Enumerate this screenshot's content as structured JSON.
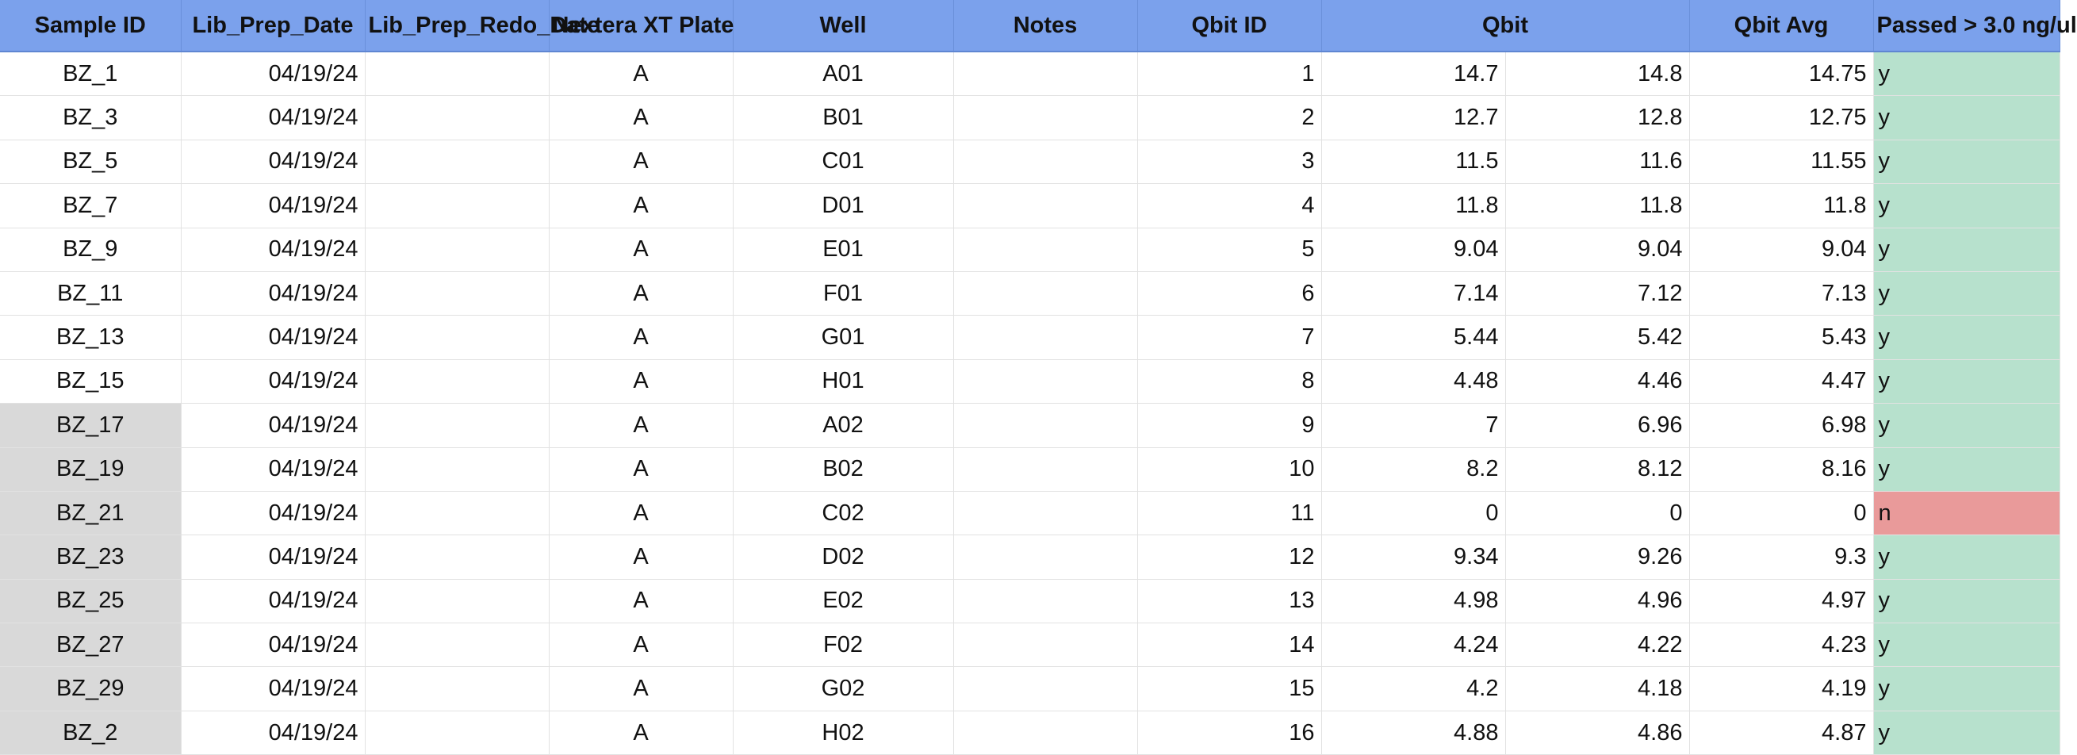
{
  "sheet": {
    "headers": [
      "Sample ID",
      "Lib_Prep_Date",
      "Lib_Prep_Redo_Date",
      "Nextera XT Plate",
      "Well",
      "Notes",
      "Qbit ID",
      "Qbit",
      "",
      "Qbit Avg",
      "Passed > 3.0 ng/ul"
    ],
    "colors": {
      "header_bg": "#7ba1ec",
      "pass_bg": "#b7e1cd",
      "fail_bg": "#e99a9a",
      "highlight_bg": "#d9d9d9"
    },
    "rows": [
      {
        "sample_id": "BZ_1",
        "lib_prep_date": "04/19/24",
        "redo_date": "",
        "plate": "A",
        "well": "A01",
        "notes": "",
        "qbit_id": "1",
        "qbit1": "14.7",
        "qbit2": "14.8",
        "avg": "14.75",
        "passed": "y",
        "highlight": false
      },
      {
        "sample_id": "BZ_3",
        "lib_prep_date": "04/19/24",
        "redo_date": "",
        "plate": "A",
        "well": "B01",
        "notes": "",
        "qbit_id": "2",
        "qbit1": "12.7",
        "qbit2": "12.8",
        "avg": "12.75",
        "passed": "y",
        "highlight": false
      },
      {
        "sample_id": "BZ_5",
        "lib_prep_date": "04/19/24",
        "redo_date": "",
        "plate": "A",
        "well": "C01",
        "notes": "",
        "qbit_id": "3",
        "qbit1": "11.5",
        "qbit2": "11.6",
        "avg": "11.55",
        "passed": "y",
        "highlight": false
      },
      {
        "sample_id": "BZ_7",
        "lib_prep_date": "04/19/24",
        "redo_date": "",
        "plate": "A",
        "well": "D01",
        "notes": "",
        "qbit_id": "4",
        "qbit1": "11.8",
        "qbit2": "11.8",
        "avg": "11.8",
        "passed": "y",
        "highlight": false
      },
      {
        "sample_id": "BZ_9",
        "lib_prep_date": "04/19/24",
        "redo_date": "",
        "plate": "A",
        "well": "E01",
        "notes": "",
        "qbit_id": "5",
        "qbit1": "9.04",
        "qbit2": "9.04",
        "avg": "9.04",
        "passed": "y",
        "highlight": false
      },
      {
        "sample_id": "BZ_11",
        "lib_prep_date": "04/19/24",
        "redo_date": "",
        "plate": "A",
        "well": "F01",
        "notes": "",
        "qbit_id": "6",
        "qbit1": "7.14",
        "qbit2": "7.12",
        "avg": "7.13",
        "passed": "y",
        "highlight": false
      },
      {
        "sample_id": "BZ_13",
        "lib_prep_date": "04/19/24",
        "redo_date": "",
        "plate": "A",
        "well": "G01",
        "notes": "",
        "qbit_id": "7",
        "qbit1": "5.44",
        "qbit2": "5.42",
        "avg": "5.43",
        "passed": "y",
        "highlight": false
      },
      {
        "sample_id": "BZ_15",
        "lib_prep_date": "04/19/24",
        "redo_date": "",
        "plate": "A",
        "well": "H01",
        "notes": "",
        "qbit_id": "8",
        "qbit1": "4.48",
        "qbit2": "4.46",
        "avg": "4.47",
        "passed": "y",
        "highlight": false
      },
      {
        "sample_id": "BZ_17",
        "lib_prep_date": "04/19/24",
        "redo_date": "",
        "plate": "A",
        "well": "A02",
        "notes": "",
        "qbit_id": "9",
        "qbit1": "7",
        "qbit2": "6.96",
        "avg": "6.98",
        "passed": "y",
        "highlight": true
      },
      {
        "sample_id": "BZ_19",
        "lib_prep_date": "04/19/24",
        "redo_date": "",
        "plate": "A",
        "well": "B02",
        "notes": "",
        "qbit_id": "10",
        "qbit1": "8.2",
        "qbit2": "8.12",
        "avg": "8.16",
        "passed": "y",
        "highlight": true
      },
      {
        "sample_id": "BZ_21",
        "lib_prep_date": "04/19/24",
        "redo_date": "",
        "plate": "A",
        "well": "C02",
        "notes": "",
        "qbit_id": "11",
        "qbit1": "0",
        "qbit2": "0",
        "avg": "0",
        "passed": "n",
        "highlight": true
      },
      {
        "sample_id": "BZ_23",
        "lib_prep_date": "04/19/24",
        "redo_date": "",
        "plate": "A",
        "well": "D02",
        "notes": "",
        "qbit_id": "12",
        "qbit1": "9.34",
        "qbit2": "9.26",
        "avg": "9.3",
        "passed": "y",
        "highlight": true
      },
      {
        "sample_id": "BZ_25",
        "lib_prep_date": "04/19/24",
        "redo_date": "",
        "plate": "A",
        "well": "E02",
        "notes": "",
        "qbit_id": "13",
        "qbit1": "4.98",
        "qbit2": "4.96",
        "avg": "4.97",
        "passed": "y",
        "highlight": true
      },
      {
        "sample_id": "BZ_27",
        "lib_prep_date": "04/19/24",
        "redo_date": "",
        "plate": "A",
        "well": "F02",
        "notes": "",
        "qbit_id": "14",
        "qbit1": "4.24",
        "qbit2": "4.22",
        "avg": "4.23",
        "passed": "y",
        "highlight": true
      },
      {
        "sample_id": "BZ_29",
        "lib_prep_date": "04/19/24",
        "redo_date": "",
        "plate": "A",
        "well": "G02",
        "notes": "",
        "qbit_id": "15",
        "qbit1": "4.2",
        "qbit2": "4.18",
        "avg": "4.19",
        "passed": "y",
        "highlight": true
      },
      {
        "sample_id": "BZ_2",
        "lib_prep_date": "04/19/24",
        "redo_date": "",
        "plate": "A",
        "well": "H02",
        "notes": "",
        "qbit_id": "16",
        "qbit1": "4.88",
        "qbit2": "4.86",
        "avg": "4.87",
        "passed": "y",
        "highlight": true
      }
    ]
  }
}
